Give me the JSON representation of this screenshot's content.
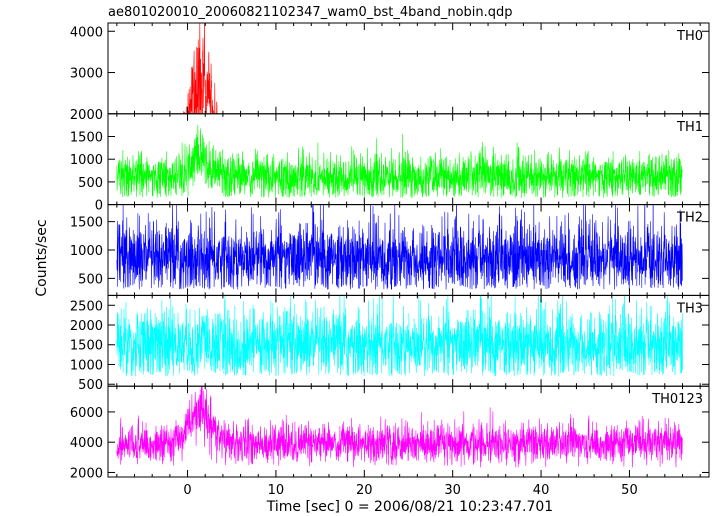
{
  "title": "ae801020010_20060821102347_wam0_bst_4band_nobin.qdp",
  "xlabel": "Time [sec] 0 = 2006/08/21 10:23:47.701",
  "ylabel": "Counts/sec",
  "chart_data": [
    {
      "type": "line",
      "name": "TH0",
      "color": "#ff0000",
      "ylim": [
        2000,
        4200
      ],
      "yticks": [
        2000,
        3000,
        4000
      ],
      "ytick_labels": [
        "2000",
        "3000",
        "4000"
      ],
      "baseline": 1000,
      "noise": 230,
      "floor": 500,
      "spikes": 0.05,
      "flare_peak": 2000,
      "flare_center": 1.5,
      "flare_width": 1.6
    },
    {
      "type": "line",
      "name": "TH1",
      "color": "#00ff00",
      "ylim": [
        0,
        2000
      ],
      "yticks": [
        0,
        500,
        1000,
        1500
      ],
      "ytick_labels": [
        "0",
        "500",
        "1000",
        "1500"
      ],
      "baseline": 600,
      "noise": 260,
      "floor": 150,
      "spikes": 0.06,
      "flare_peak": 450,
      "flare_center": 1.5,
      "flare_width": 1.5
    },
    {
      "type": "line",
      "name": "TH2",
      "color": "#0000ff",
      "ylim": [
        200,
        1800
      ],
      "yticks": [
        500,
        1000,
        1500
      ],
      "ytick_labels": [
        "500",
        "1000",
        "1500"
      ],
      "baseline": 850,
      "noise": 330,
      "floor": 300,
      "spikes": 0.05,
      "flare_peak": 0,
      "flare_center": 1.5,
      "flare_width": 1.5
    },
    {
      "type": "line",
      "name": "TH3",
      "color": "#00ffff",
      "ylim": [
        450,
        2750
      ],
      "yticks": [
        500,
        1000,
        1500,
        2000,
        2500
      ],
      "ytick_labels": [
        "500",
        "1000",
        "1500",
        "2000",
        "2500"
      ],
      "baseline": 1500,
      "noise": 470,
      "floor": 700,
      "spikes": 0.05,
      "flare_peak": 0,
      "flare_center": 1.5,
      "flare_width": 1.5
    },
    {
      "type": "line",
      "name": "TH0123",
      "color": "#ff00ff",
      "ylim": [
        1700,
        7700
      ],
      "yticks": [
        2000,
        4000,
        6000
      ],
      "ytick_labels": [
        "2000",
        "4000",
        "6000"
      ],
      "baseline": 3900,
      "noise": 650,
      "floor": 2300,
      "spikes": 0.05,
      "flare_peak": 2200,
      "flare_center": 1.5,
      "flare_width": 1.6
    }
  ],
  "x_axis": {
    "xlim": [
      -9,
      59
    ],
    "data_range": [
      -8,
      56
    ],
    "xticks": [
      0,
      10,
      20,
      30,
      40,
      50
    ],
    "xtick_labels": [
      "0",
      "10",
      "20",
      "30",
      "40",
      "50"
    ]
  }
}
